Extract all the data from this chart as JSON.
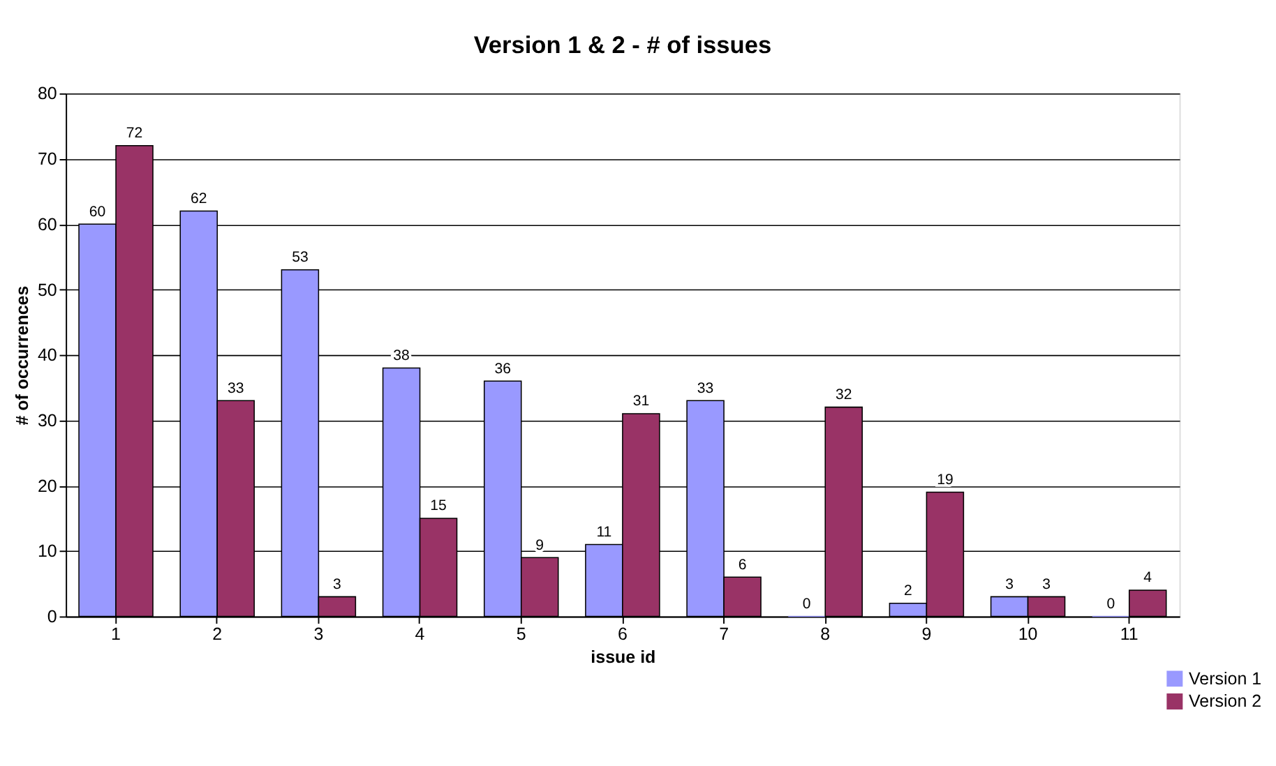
{
  "chart_data": {
    "type": "bar",
    "title": "Version 1 & 2 - # of issues",
    "xlabel": "issue id",
    "ylabel": "# of occurrences",
    "categories": [
      "1",
      "2",
      "3",
      "4",
      "5",
      "6",
      "7",
      "8",
      "9",
      "10",
      "11"
    ],
    "series": [
      {
        "name": "Version 1",
        "color": "#9999ff",
        "values": [
          60,
          62,
          53,
          38,
          36,
          11,
          33,
          0,
          2,
          3,
          0
        ]
      },
      {
        "name": "Version 2",
        "color": "#993366",
        "values": [
          72,
          33,
          3,
          15,
          9,
          31,
          6,
          32,
          19,
          3,
          4
        ]
      }
    ],
    "ylim": [
      0,
      80
    ],
    "yticks": [
      0,
      10,
      20,
      30,
      40,
      50,
      60,
      70,
      80
    ],
    "grid": "y",
    "legend": "bottom right",
    "data_labels": true
  }
}
